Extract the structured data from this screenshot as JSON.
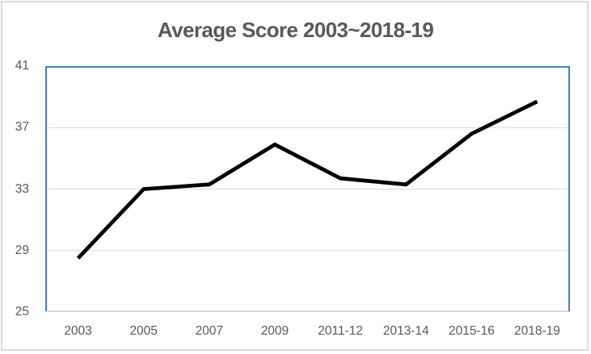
{
  "chart_data": {
    "type": "line",
    "title": "Average Score 2003~2018-19",
    "categories": [
      "2003",
      "2005",
      "2007",
      "2009",
      "2011-12",
      "2013-14",
      "2015-16",
      "2018-19"
    ],
    "series": [
      {
        "name": "Average Score",
        "values": [
          28.5,
          33.0,
          33.3,
          35.9,
          33.7,
          33.3,
          36.6,
          38.7
        ],
        "color": "#000000",
        "stroke_width": 4.75
      }
    ],
    "xlabel": "",
    "ylabel": "",
    "ylim": [
      25,
      41
    ],
    "yticks": [
      25,
      29,
      33,
      37,
      41
    ],
    "grid": true,
    "gridline_values": [
      29,
      33,
      37
    ],
    "legend_position": "none",
    "colors": {
      "title": "#595959",
      "tick_label": "#595959",
      "plot_border": "#4a7ebe",
      "gridline": "#d9d9d9",
      "axis_line": "#d9d9d9",
      "outer_frame": "#d9d9d9"
    }
  }
}
